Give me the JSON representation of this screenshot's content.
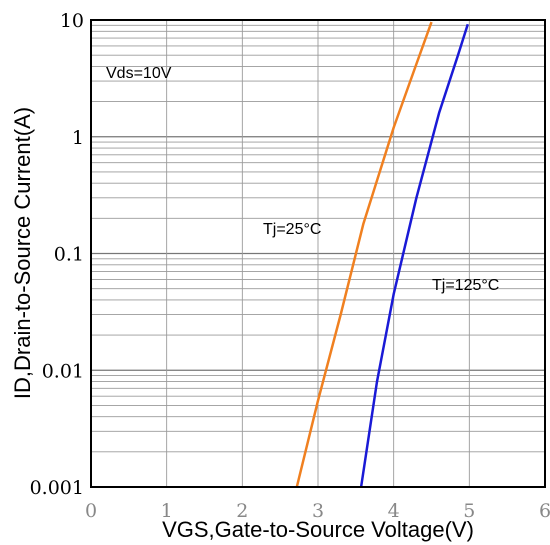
{
  "chart_data": {
    "type": "line",
    "xlabel": "VGS,Gate-to-Source Voltage(V)",
    "ylabel": "ID,Drain-to-Source Current(A)",
    "x_scale": "linear",
    "y_scale": "log",
    "xlim": [
      0,
      6
    ],
    "ylim": [
      0.001,
      10
    ],
    "x_ticks": [
      "0",
      "1",
      "2",
      "3",
      "4",
      "5",
      "6"
    ],
    "y_ticks": [
      "0.001",
      "0.01",
      "0.1",
      "1",
      "10"
    ],
    "grid": true,
    "annotations": [
      "Vds=10V",
      "Tj=25°C",
      "Tj=125°C"
    ],
    "series": [
      {
        "name": "Tj=25°C",
        "color": "#f08020",
        "x": [
          2.72,
          3.0,
          3.3,
          3.6,
          4.0,
          4.3,
          4.5
        ],
        "y": [
          0.001,
          0.0055,
          0.03,
          0.18,
          1.2,
          4.2,
          9.6
        ]
      },
      {
        "name": "Tj=125°C",
        "color": "#1a1ad6",
        "x": [
          3.57,
          3.78,
          4.0,
          4.3,
          4.6,
          4.85,
          4.98
        ],
        "y": [
          0.001,
          0.008,
          0.045,
          0.3,
          1.6,
          5.0,
          9.2
        ]
      }
    ]
  }
}
